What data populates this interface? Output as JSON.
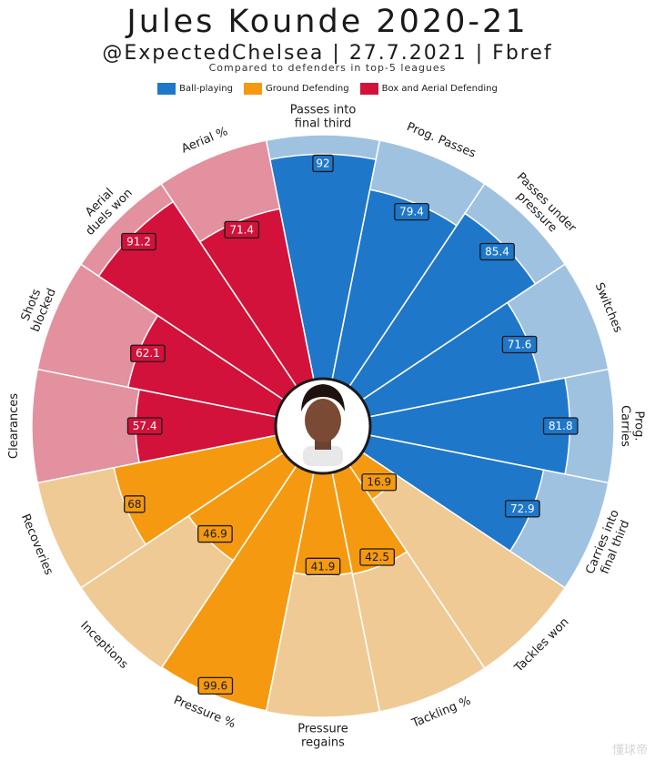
{
  "header": {
    "title": "Jules Kounde 2020-21",
    "subtitle": "@ExpectedChelsea | 27.7.2021 | Fbref",
    "note": "Compared to defenders in top-5 leagues"
  },
  "legend": [
    {
      "label": "Ball-playing",
      "color": "#1f77c9"
    },
    {
      "label": "Ground Defending",
      "color": "#f59a10"
    },
    {
      "label": "Box and Aerial Defending",
      "color": "#d2123a"
    }
  ],
  "colors": {
    "ball_playing": "#1f77c9",
    "ball_playing_bg": "#9fc2e1",
    "ground_defending": "#f59a10",
    "ground_defending_bg": "#f0ca94",
    "aerial": "#d2123a",
    "aerial_bg": "#e3909f"
  },
  "chart_data": {
    "type": "radial-bar",
    "title": "Jules Kounde 2020-21",
    "subtitle": "@ExpectedChelsea | 27.7.2021 | Fbref",
    "range": [
      0,
      100
    ],
    "series": [
      {
        "name": "Ball-playing",
        "color": "#1f77c9"
      },
      {
        "name": "Ground Defending",
        "color": "#f59a10"
      },
      {
        "name": "Box and Aerial Defending",
        "color": "#d2123a"
      }
    ],
    "data": [
      {
        "label": "Passes into final third",
        "value": 92,
        "group": "Ball-playing"
      },
      {
        "label": "Prog. Passes",
        "value": 79.4,
        "group": "Ball-playing"
      },
      {
        "label": "Passes under pressure",
        "value": 85.4,
        "group": "Ball-playing"
      },
      {
        "label": "Switches",
        "value": 71.6,
        "group": "Ball-playing"
      },
      {
        "label": "Prog. Carries",
        "value": 81.8,
        "group": "Ball-playing"
      },
      {
        "label": "Carries into final third",
        "value": 72.9,
        "group": "Ball-playing"
      },
      {
        "label": "Tackles won",
        "value": 16.9,
        "group": "Ground Defending"
      },
      {
        "label": "Tackling %",
        "value": 42.5,
        "group": "Ground Defending"
      },
      {
        "label": "Pressure regains",
        "value": 41.9,
        "group": "Ground Defending"
      },
      {
        "label": "Pressure %",
        "value": 99.6,
        "group": "Ground Defending"
      },
      {
        "label": "Inceptions",
        "value": 46.9,
        "group": "Ground Defending"
      },
      {
        "label": "Recoveries",
        "value": 68,
        "group": "Ground Defending"
      },
      {
        "label": "Clearances",
        "value": 57.4,
        "group": "Box and Aerial Defending"
      },
      {
        "label": "Shots blocked",
        "value": 62.1,
        "group": "Box and Aerial Defending"
      },
      {
        "label": "Aerial duels won",
        "value": 91.2,
        "group": "Box and Aerial Defending"
      },
      {
        "label": "Aerial %",
        "value": 71.4,
        "group": "Box and Aerial Defending"
      }
    ]
  },
  "watermark": "懂球帝"
}
